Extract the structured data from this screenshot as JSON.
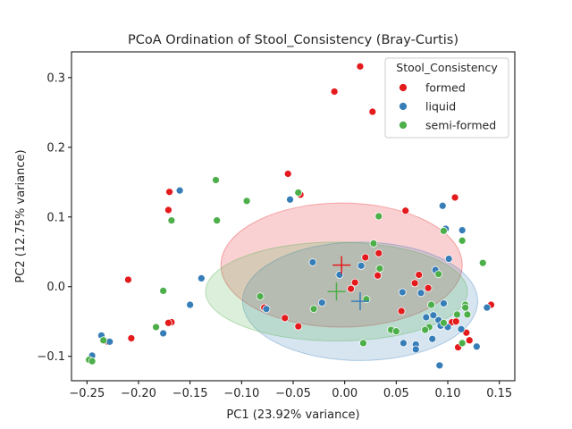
{
  "chart_data": {
    "type": "scatter",
    "title": "PCoA Ordination of Stool_Consistency (Bray-Curtis)",
    "xlabel": "PC1 (23.92% variance)",
    "ylabel": "PC2 (12.75% variance)",
    "xlim": [
      -0.265,
      0.165
    ],
    "ylim": [
      -0.135,
      0.337
    ],
    "xticks": [
      -0.25,
      -0.2,
      -0.15,
      -0.1,
      -0.05,
      0.0,
      0.05,
      0.1,
      0.15
    ],
    "xtick_labels": [
      "−0.25",
      "−0.20",
      "−0.15",
      "−0.10",
      "−0.05",
      "0.00",
      "0.05",
      "0.10",
      "0.15"
    ],
    "yticks": [
      -0.1,
      0.0,
      0.1,
      0.2,
      0.3
    ],
    "ytick_labels": [
      "−0.1",
      "0.0",
      "0.1",
      "0.2",
      "0.3"
    ],
    "grid": false,
    "legend": {
      "title": "Stool_Consistency",
      "placement": "top-right"
    },
    "series": [
      {
        "name": "formed",
        "color": "#e41a1c",
        "centroid": [
          -0.003,
          0.031
        ],
        "ellipse": {
          "center": [
            -0.003,
            0.031
          ],
          "rx": 0.117,
          "ry": 0.089,
          "opacity": 0.2
        },
        "points": [
          [
            0.015,
            0.316
          ],
          [
            -0.01,
            0.28
          ],
          [
            0.027,
            0.251
          ],
          [
            -0.055,
            0.162
          ],
          [
            -0.17,
            0.136
          ],
          [
            -0.043,
            0.132
          ],
          [
            0.107,
            0.128
          ],
          [
            -0.171,
            0.11
          ],
          [
            0.059,
            0.109
          ],
          [
            -0.21,
            0.01
          ],
          [
            0.033,
            0.048
          ],
          [
            0.072,
            0.017
          ],
          [
            0.032,
            0.016
          ],
          [
            0.01,
            0.006
          ],
          [
            0.068,
            0.005
          ],
          [
            0.081,
            -0.002
          ],
          [
            0.006,
            -0.003
          ],
          [
            -0.078,
            -0.03
          ],
          [
            0.055,
            -0.035
          ],
          [
            -0.058,
            -0.045
          ],
          [
            -0.045,
            -0.057
          ],
          [
            -0.168,
            -0.051
          ],
          [
            -0.171,
            -0.052
          ],
          [
            0.104,
            -0.051
          ],
          [
            0.108,
            -0.05
          ],
          [
            0.118,
            -0.066
          ],
          [
            0.142,
            -0.026
          ],
          [
            0.121,
            -0.077
          ],
          [
            0.11,
            -0.087
          ],
          [
            -0.207,
            -0.074
          ],
          [
            -0.23,
            -0.079
          ],
          [
            0.02,
            0.042
          ]
        ]
      },
      {
        "name": "liquid",
        "color": "#377eb8",
        "centroid": [
          0.015,
          -0.021
        ],
        "ellipse": {
          "center": [
            0.015,
            -0.021
          ],
          "rx": 0.114,
          "ry": 0.085,
          "opacity": 0.2
        },
        "points": [
          [
            -0.16,
            0.138
          ],
          [
            -0.053,
            0.125
          ],
          [
            0.095,
            0.116
          ],
          [
            0.098,
            0.083
          ],
          [
            0.114,
            0.081
          ],
          [
            0.101,
            0.04
          ],
          [
            0.088,
            0.024
          ],
          [
            -0.031,
            0.035
          ],
          [
            -0.005,
            0.017
          ],
          [
            0.016,
            0.03
          ],
          [
            -0.139,
            0.012
          ],
          [
            -0.15,
            -0.026
          ],
          [
            -0.076,
            -0.032
          ],
          [
            -0.022,
            -0.023
          ],
          [
            0.056,
            -0.008
          ],
          [
            0.074,
            -0.009
          ],
          [
            0.096,
            -0.024
          ],
          [
            0.138,
            -0.03
          ],
          [
            0.079,
            -0.044
          ],
          [
            0.086,
            -0.041
          ],
          [
            0.091,
            -0.048
          ],
          [
            0.093,
            -0.056
          ],
          [
            0.1,
            -0.058
          ],
          [
            0.113,
            -0.061
          ],
          [
            0.085,
            -0.075
          ],
          [
            0.057,
            -0.081
          ],
          [
            0.069,
            -0.083
          ],
          [
            0.069,
            -0.09
          ],
          [
            0.128,
            -0.086
          ],
          [
            0.092,
            -0.113
          ],
          [
            -0.176,
            -0.067
          ],
          [
            -0.236,
            -0.07
          ],
          [
            -0.245,
            -0.099
          ],
          [
            -0.228,
            -0.079
          ]
        ]
      },
      {
        "name": "semi-formed",
        "color": "#4daf4a",
        "centroid": [
          -0.008,
          -0.007
        ],
        "ellipse": {
          "center": [
            -0.008,
            -0.007
          ],
          "rx": 0.127,
          "ry": 0.071,
          "opacity": 0.2
        },
        "points": [
          [
            -0.125,
            0.153
          ],
          [
            -0.095,
            0.123
          ],
          [
            -0.045,
            0.135
          ],
          [
            -0.124,
            0.095
          ],
          [
            -0.168,
            0.095
          ],
          [
            0.033,
            0.101
          ],
          [
            0.096,
            0.08
          ],
          [
            0.114,
            0.066
          ],
          [
            0.028,
            0.062
          ],
          [
            0.134,
            0.034
          ],
          [
            0.034,
            0.026
          ],
          [
            0.091,
            0.018
          ],
          [
            -0.176,
            -0.006
          ],
          [
            -0.082,
            -0.014
          ],
          [
            0.021,
            -0.018
          ],
          [
            -0.03,
            -0.032
          ],
          [
            0.084,
            -0.026
          ],
          [
            0.117,
            -0.026
          ],
          [
            0.117,
            -0.03
          ],
          [
            0.119,
            -0.04
          ],
          [
            0.109,
            -0.04
          ],
          [
            0.096,
            -0.052
          ],
          [
            0.082,
            -0.058
          ],
          [
            0.078,
            -0.062
          ],
          [
            0.045,
            -0.062
          ],
          [
            0.05,
            -0.064
          ],
          [
            0.018,
            -0.081
          ],
          [
            0.114,
            -0.081
          ],
          [
            -0.183,
            -0.058
          ],
          [
            -0.234,
            -0.077
          ],
          [
            -0.248,
            -0.105
          ],
          [
            -0.245,
            -0.107
          ]
        ]
      }
    ]
  }
}
